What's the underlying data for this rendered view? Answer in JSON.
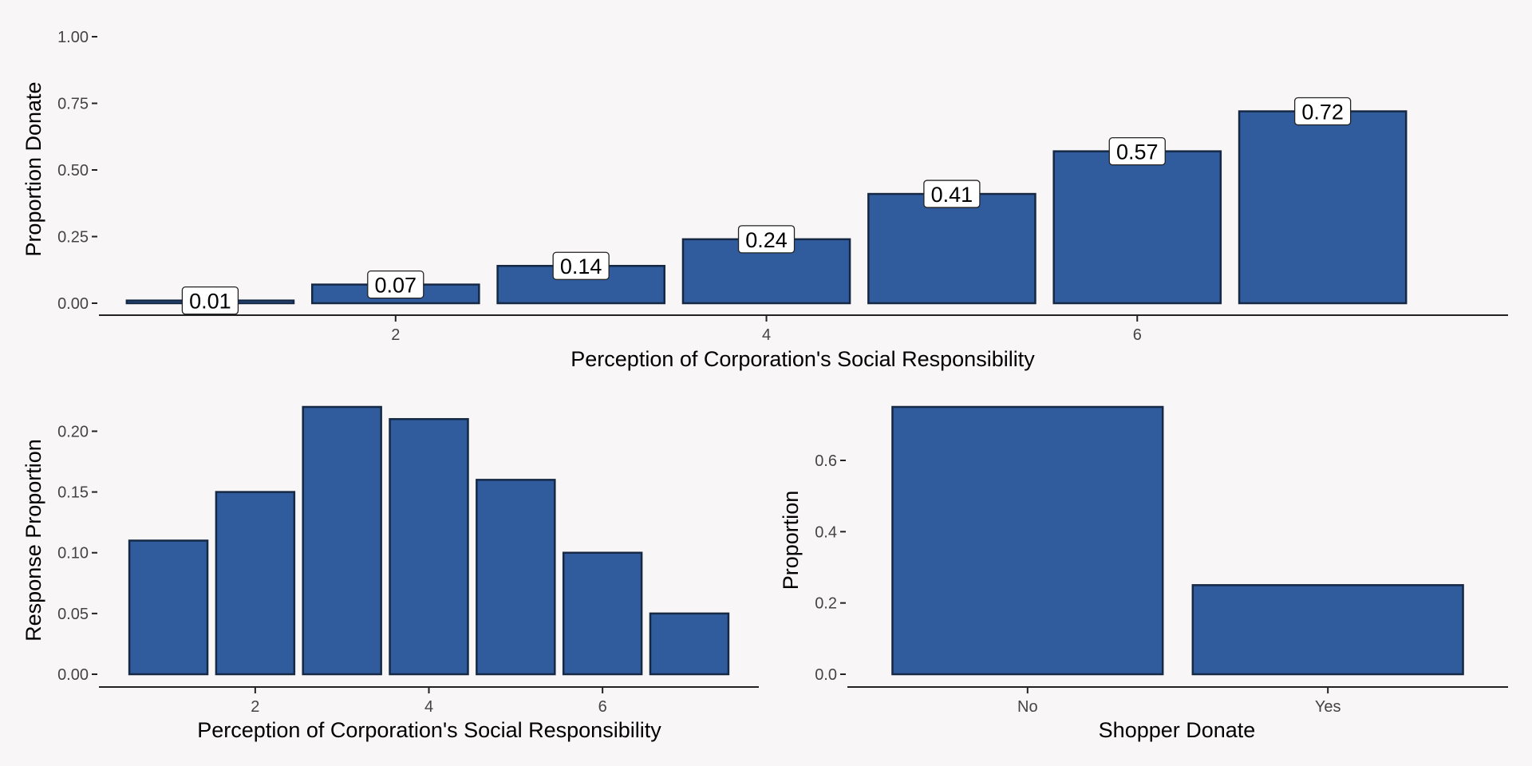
{
  "colors": {
    "background": "#f8f6f6",
    "bar_fill": "#305c9e",
    "bar_stroke": "#152844",
    "axis": "#222222",
    "label_box": "#ffffff"
  },
  "chart_data": [
    {
      "id": "top",
      "type": "bar",
      "x": [
        1,
        2,
        3,
        4,
        5,
        6,
        7
      ],
      "values": [
        0.01,
        0.07,
        0.14,
        0.24,
        0.41,
        0.57,
        0.72
      ],
      "data_labels": [
        "0.01",
        "0.07",
        "0.14",
        "0.24",
        "0.41",
        "0.57",
        "0.72"
      ],
      "xlabel": "Perception of Corporation's Social Responsibility",
      "ylabel": "Proportion Donate",
      "xlim": [
        0.4,
        8.0
      ],
      "ylim": [
        0,
        1.0
      ],
      "xticks": [
        2,
        4,
        6
      ],
      "yticks": [
        0,
        0.25,
        0.5,
        0.75,
        1.0
      ],
      "ytick_labels": [
        "0.00",
        "0.25",
        "0.50",
        "0.75",
        "1.00"
      ],
      "grid": false,
      "legend": "none"
    },
    {
      "id": "bottom-left",
      "type": "bar",
      "x": [
        1,
        2,
        3,
        4,
        5,
        6,
        7
      ],
      "values": [
        0.11,
        0.15,
        0.22,
        0.21,
        0.16,
        0.1,
        0.05
      ],
      "xlabel": "Perception of Corporation's Social Responsibility",
      "ylabel": "Response Proportion",
      "xlim": [
        0.2,
        7.8
      ],
      "ylim": [
        0,
        0.22
      ],
      "xticks": [
        2,
        4,
        6
      ],
      "yticks": [
        0,
        0.05,
        0.1,
        0.15,
        0.2
      ],
      "ytick_labels": [
        "0.00",
        "0.05",
        "0.10",
        "0.15",
        "0.20"
      ],
      "grid": false,
      "legend": "none"
    },
    {
      "id": "bottom-right",
      "type": "bar",
      "categories": [
        "No",
        "Yes"
      ],
      "values": [
        0.75,
        0.25
      ],
      "xlabel": "Shopper Donate",
      "ylabel": "Proportion",
      "ylim": [
        0,
        0.75
      ],
      "yticks": [
        0,
        0.2,
        0.4,
        0.6
      ],
      "ytick_labels": [
        "0.0",
        "0.2",
        "0.4",
        "0.6"
      ],
      "grid": false,
      "legend": "none"
    }
  ]
}
